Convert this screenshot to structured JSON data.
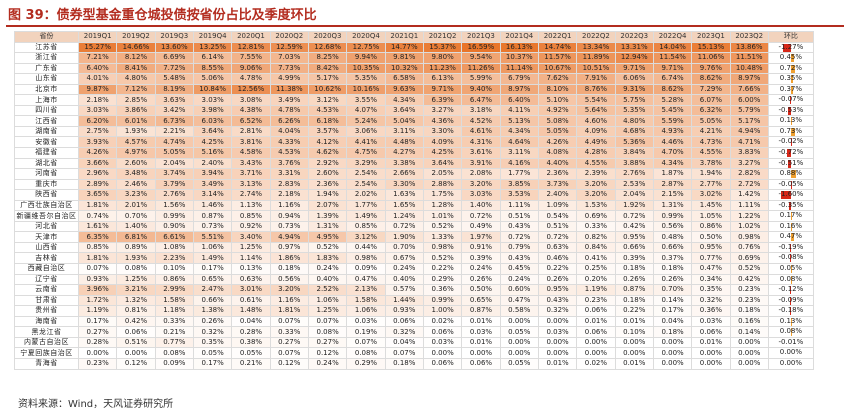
{
  "title": "图 39：债券型基金重仓城投债按省份占比及季度环比",
  "source": "资料来源：Wind，天风证券研究所",
  "colors": {
    "title": "#b32c1f",
    "header_bg": "#f2d3bd",
    "heat_high": "#e8752a",
    "heat_low": "#ffffff",
    "bar_negative": "#d62718",
    "bar_positive": "#f0a030"
  },
  "table": {
    "headers": [
      "省份",
      "2019Q1",
      "2019Q2",
      "2019Q3",
      "2019Q4",
      "2020Q1",
      "2020Q2",
      "2020Q3",
      "2020Q4",
      "2021Q1",
      "2021Q2",
      "2021Q3",
      "2021Q4",
      "2022Q1",
      "2022Q2",
      "2022Q3",
      "2022Q4",
      "2023Q1",
      "2023Q2",
      "环比"
    ],
    "rows": [
      {
        "province": "江苏省",
        "values": [
          "15.27%",
          "14.66%",
          "13.60%",
          "13.25%",
          "12.81%",
          "12.59%",
          "12.68%",
          "12.75%",
          "14.77%",
          "15.37%",
          "16.59%",
          "16.13%",
          "14.74%",
          "13.34%",
          "13.31%",
          "14.04%",
          "15.13%",
          "13.86%"
        ],
        "change": "-1.27%"
      },
      {
        "province": "浙江省",
        "values": [
          "7.21%",
          "8.12%",
          "6.69%",
          "6.14%",
          "7.55%",
          "7.03%",
          "8.25%",
          "9.94%",
          "9.81%",
          "9.80%",
          "9.54%",
          "10.37%",
          "11.57%",
          "11.89%",
          "12.94%",
          "11.54%",
          "11.06%",
          "11.51%"
        ],
        "change": "0.45%"
      },
      {
        "province": "广东省",
        "values": [
          "6.40%",
          "8.41%",
          "7.72%",
          "8.55%",
          "9.06%",
          "7.73%",
          "8.42%",
          "10.35%",
          "10.32%",
          "11.23%",
          "11.26%",
          "11.14%",
          "10.67%",
          "10.51%",
          "9.71%",
          "9.71%",
          "9.76%",
          "10.48%"
        ],
        "change": "0.72%"
      },
      {
        "province": "山东省",
        "values": [
          "4.01%",
          "4.80%",
          "5.48%",
          "5.06%",
          "4.78%",
          "4.99%",
          "5.17%",
          "5.35%",
          "6.58%",
          "6.13%",
          "5.99%",
          "6.79%",
          "7.62%",
          "7.91%",
          "6.06%",
          "6.74%",
          "8.62%",
          "8.97%"
        ],
        "change": "0.35%"
      },
      {
        "province": "北京市",
        "values": [
          "9.87%",
          "7.12%",
          "8.19%",
          "10.84%",
          "12.56%",
          "11.38%",
          "10.62%",
          "10.16%",
          "9.63%",
          "9.71%",
          "9.40%",
          "8.97%",
          "8.10%",
          "8.76%",
          "9.31%",
          "8.62%",
          "7.29%",
          "7.66%"
        ],
        "change": "0.37%"
      },
      {
        "province": "上海市",
        "values": [
          "2.18%",
          "2.85%",
          "3.63%",
          "3.03%",
          "3.08%",
          "3.49%",
          "3.12%",
          "3.55%",
          "4.34%",
          "6.39%",
          "6.47%",
          "6.40%",
          "5.10%",
          "5.54%",
          "5.75%",
          "5.28%",
          "6.07%",
          "6.00%"
        ],
        "change": "-0.07%"
      },
      {
        "province": "四川省",
        "values": [
          "3.03%",
          "3.86%",
          "3.42%",
          "3.98%",
          "4.38%",
          "4.78%",
          "4.53%",
          "4.07%",
          "3.64%",
          "3.27%",
          "3.18%",
          "4.11%",
          "4.92%",
          "5.64%",
          "5.35%",
          "5.45%",
          "6.32%",
          "5.79%"
        ],
        "change": "-0.53%"
      },
      {
        "province": "江西省",
        "values": [
          "6.20%",
          "6.01%",
          "6.73%",
          "6.03%",
          "6.52%",
          "6.26%",
          "6.18%",
          "5.24%",
          "5.04%",
          "4.36%",
          "4.52%",
          "5.13%",
          "5.08%",
          "4.60%",
          "4.80%",
          "5.59%",
          "5.05%",
          "5.17%"
        ],
        "change": "0.13%"
      },
      {
        "province": "湖南省",
        "values": [
          "2.75%",
          "1.93%",
          "2.21%",
          "3.64%",
          "2.81%",
          "4.04%",
          "3.57%",
          "3.06%",
          "3.11%",
          "3.30%",
          "4.61%",
          "4.34%",
          "5.05%",
          "4.09%",
          "4.68%",
          "4.93%",
          "4.21%",
          "4.94%"
        ],
        "change": "0.73%"
      },
      {
        "province": "安徽省",
        "values": [
          "3.93%",
          "4.57%",
          "4.74%",
          "4.25%",
          "3.81%",
          "4.33%",
          "4.12%",
          "4.41%",
          "4.48%",
          "4.09%",
          "4.31%",
          "4.64%",
          "4.26%",
          "4.49%",
          "5.36%",
          "4.46%",
          "4.73%",
          "4.71%"
        ],
        "change": "-0.02%"
      },
      {
        "province": "福建省",
        "values": [
          "4.26%",
          "4.97%",
          "5.05%",
          "5.16%",
          "4.58%",
          "4.53%",
          "4.62%",
          "4.75%",
          "4.27%",
          "4.25%",
          "3.61%",
          "3.11%",
          "4.08%",
          "4.28%",
          "3.84%",
          "4.70%",
          "4.55%",
          "3.83%"
        ],
        "change": "-0.72%"
      },
      {
        "province": "湖北省",
        "values": [
          "3.66%",
          "2.60%",
          "2.04%",
          "2.40%",
          "3.43%",
          "3.76%",
          "2.92%",
          "3.29%",
          "3.38%",
          "3.64%",
          "3.91%",
          "4.16%",
          "4.40%",
          "4.55%",
          "3.88%",
          "4.34%",
          "3.78%",
          "3.27%"
        ],
        "change": "-0.51%"
      },
      {
        "province": "河南省",
        "values": [
          "2.96%",
          "3.48%",
          "3.74%",
          "3.94%",
          "3.71%",
          "3.31%",
          "2.60%",
          "2.54%",
          "2.66%",
          "2.05%",
          "2.08%",
          "1.77%",
          "2.36%",
          "2.39%",
          "2.76%",
          "1.87%",
          "1.94%",
          "2.82%"
        ],
        "change": "0.88%"
      },
      {
        "province": "重庆市",
        "values": [
          "2.89%",
          "2.46%",
          "3.79%",
          "3.49%",
          "3.13%",
          "2.83%",
          "2.36%",
          "2.54%",
          "3.30%",
          "2.88%",
          "3.20%",
          "3.85%",
          "3.73%",
          "3.20%",
          "2.53%",
          "2.87%",
          "2.77%",
          "2.72%"
        ],
        "change": "-0.05%"
      },
      {
        "province": "陕西省",
        "values": [
          "3.65%",
          "3.23%",
          "2.76%",
          "3.14%",
          "2.74%",
          "2.18%",
          "1.94%",
          "2.02%",
          "1.63%",
          "1.75%",
          "3.03%",
          "3.53%",
          "2.40%",
          "3.20%",
          "2.04%",
          "2.15%",
          "3.02%",
          "1.42%"
        ],
        "change": "-1.60%"
      },
      {
        "province": "广西壮族自治区",
        "values": [
          "1.81%",
          "2.01%",
          "1.56%",
          "1.46%",
          "1.13%",
          "1.16%",
          "2.07%",
          "1.77%",
          "1.65%",
          "1.28%",
          "1.40%",
          "1.11%",
          "1.09%",
          "1.53%",
          "1.92%",
          "1.31%",
          "1.45%",
          "1.11%"
        ],
        "change": "-0.35%"
      },
      {
        "province": "新疆维吾尔自治区",
        "values": [
          "0.74%",
          "0.70%",
          "0.99%",
          "0.87%",
          "0.85%",
          "0.94%",
          "1.39%",
          "1.49%",
          "1.24%",
          "1.01%",
          "0.72%",
          "0.51%",
          "0.54%",
          "0.69%",
          "0.72%",
          "0.99%",
          "1.05%",
          "1.22%"
        ],
        "change": "0.17%"
      },
      {
        "province": "河北省",
        "values": [
          "1.61%",
          "1.40%",
          "0.90%",
          "0.73%",
          "0.92%",
          "0.73%",
          "1.31%",
          "0.85%",
          "0.72%",
          "0.52%",
          "0.49%",
          "0.43%",
          "0.51%",
          "0.33%",
          "0.42%",
          "0.56%",
          "0.86%",
          "1.02%"
        ],
        "change": "0.16%"
      },
      {
        "province": "天津市",
        "values": [
          "6.35%",
          "6.81%",
          "6.61%",
          "5.51%",
          "3.40%",
          "4.94%",
          "4.95%",
          "3.12%",
          "1.90%",
          "1.33%",
          "1.97%",
          "0.72%",
          "0.72%",
          "0.82%",
          "0.95%",
          "0.48%",
          "0.50%",
          "0.98%"
        ],
        "change": "0.47%"
      },
      {
        "province": "山西省",
        "values": [
          "0.85%",
          "0.89%",
          "1.08%",
          "1.06%",
          "1.25%",
          "0.97%",
          "0.52%",
          "0.44%",
          "0.70%",
          "0.98%",
          "0.91%",
          "0.79%",
          "0.63%",
          "0.84%",
          "0.66%",
          "0.66%",
          "0.95%",
          "0.76%"
        ],
        "change": "-0.19%"
      },
      {
        "province": "吉林省",
        "values": [
          "1.81%",
          "1.93%",
          "2.23%",
          "1.49%",
          "1.14%",
          "1.86%",
          "1.83%",
          "0.98%",
          "0.67%",
          "0.52%",
          "0.39%",
          "0.43%",
          "0.46%",
          "0.41%",
          "0.39%",
          "0.37%",
          "0.77%",
          "0.69%"
        ],
        "change": "-0.08%"
      },
      {
        "province": "西藏自治区",
        "values": [
          "0.07%",
          "0.08%",
          "0.10%",
          "0.17%",
          "0.13%",
          "0.18%",
          "0.24%",
          "0.09%",
          "0.24%",
          "0.22%",
          "0.24%",
          "0.45%",
          "0.22%",
          "0.25%",
          "0.18%",
          "0.18%",
          "0.47%",
          "0.52%"
        ],
        "change": "0.05%"
      },
      {
        "province": "辽宁省",
        "values": [
          "0.93%",
          "1.25%",
          "0.86%",
          "0.65%",
          "0.63%",
          "0.56%",
          "0.40%",
          "0.47%",
          "0.40%",
          "0.29%",
          "0.26%",
          "0.24%",
          "0.26%",
          "0.20%",
          "0.26%",
          "0.26%",
          "0.34%",
          "0.42%"
        ],
        "change": "0.08%"
      },
      {
        "province": "云南省",
        "values": [
          "3.96%",
          "3.21%",
          "2.99%",
          "2.47%",
          "3.01%",
          "3.20%",
          "2.52%",
          "2.13%",
          "0.57%",
          "0.36%",
          "0.50%",
          "0.60%",
          "0.95%",
          "1.19%",
          "0.87%",
          "0.70%",
          "0.35%",
          "0.23%"
        ],
        "change": "-0.12%"
      },
      {
        "province": "甘肃省",
        "values": [
          "1.72%",
          "1.32%",
          "1.58%",
          "0.66%",
          "0.61%",
          "1.16%",
          "1.06%",
          "1.58%",
          "1.44%",
          "0.99%",
          "0.65%",
          "0.47%",
          "0.43%",
          "0.23%",
          "0.18%",
          "0.14%",
          "0.32%",
          "0.23%"
        ],
        "change": "-0.09%"
      },
      {
        "province": "贵州省",
        "values": [
          "1.19%",
          "0.81%",
          "1.18%",
          "1.38%",
          "1.48%",
          "1.81%",
          "1.25%",
          "1.06%",
          "0.93%",
          "1.00%",
          "0.87%",
          "0.58%",
          "0.32%",
          "0.06%",
          "0.22%",
          "0.17%",
          "0.36%",
          "0.18%"
        ],
        "change": "-0.18%"
      },
      {
        "province": "海南省",
        "values": [
          "0.17%",
          "0.42%",
          "0.33%",
          "0.26%",
          "0.04%",
          "0.07%",
          "0.07%",
          "0.03%",
          "0.06%",
          "0.02%",
          "0.01%",
          "0.00%",
          "0.00%",
          "0.01%",
          "0.01%",
          "0.04%",
          "0.03%",
          "0.16%"
        ],
        "change": "0.13%"
      },
      {
        "province": "黑龙江省",
        "values": [
          "0.27%",
          "0.06%",
          "0.21%",
          "0.32%",
          "0.28%",
          "0.33%",
          "0.08%",
          "0.19%",
          "0.32%",
          "0.06%",
          "0.03%",
          "0.05%",
          "0.03%",
          "0.06%",
          "0.10%",
          "0.18%",
          "0.06%",
          "0.14%"
        ],
        "change": "0.08%"
      },
      {
        "province": "内蒙古自治区",
        "values": [
          "0.28%",
          "0.51%",
          "0.77%",
          "0.35%",
          "0.38%",
          "0.27%",
          "0.27%",
          "0.07%",
          "0.04%",
          "0.03%",
          "0.01%",
          "0.00%",
          "0.00%",
          "0.00%",
          "0.00%",
          "0.00%",
          "0.01%",
          "0.00%"
        ],
        "change": "-0.01%"
      },
      {
        "province": "宁夏回族自治区",
        "values": [
          "0.00%",
          "0.00%",
          "0.08%",
          "0.05%",
          "0.05%",
          "0.07%",
          "0.12%",
          "0.08%",
          "0.07%",
          "0.00%",
          "0.00%",
          "0.00%",
          "0.00%",
          "0.00%",
          "0.00%",
          "0.00%",
          "0.00%",
          "0.00%"
        ],
        "change": "0.00%"
      },
      {
        "province": "青海省",
        "values": [
          "0.23%",
          "0.12%",
          "0.09%",
          "0.17%",
          "0.21%",
          "0.12%",
          "0.24%",
          "0.29%",
          "0.18%",
          "0.06%",
          "0.06%",
          "0.05%",
          "0.01%",
          "0.02%",
          "0.01%",
          "0.00%",
          "0.00%",
          "0.00%"
        ],
        "change": "0.00%"
      }
    ]
  }
}
